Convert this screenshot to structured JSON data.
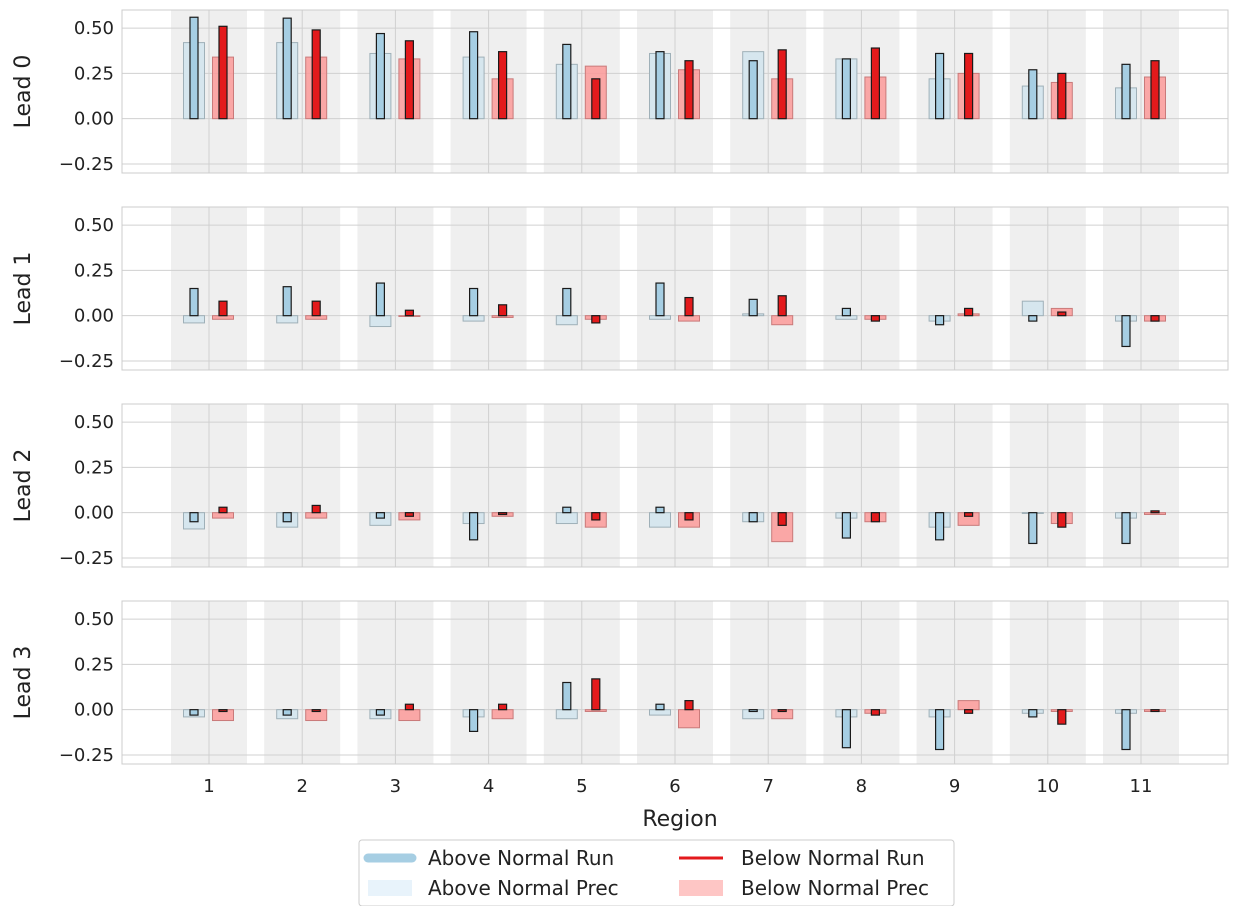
{
  "chart_data": {
    "type": "bar",
    "xlabel": "Region",
    "categories": [
      "1",
      "2",
      "3",
      "4",
      "5",
      "6",
      "7",
      "8",
      "9",
      "10",
      "11"
    ],
    "ylim": [
      -0.3,
      0.6
    ],
    "yticks": [
      "0.50",
      "0.25",
      "0.00",
      "−0.25"
    ],
    "ytick_values": [
      0.5,
      0.25,
      0,
      -0.25
    ],
    "grid": true,
    "legend": {
      "placement": "bottom-center",
      "entries": [
        "Above Normal Run",
        "Below Normal Run",
        "Above Normal Prec",
        "Below Normal Prec"
      ]
    },
    "colors": {
      "above_run": "#a6cee3",
      "above_prec": "#d6e6ee",
      "below_run": "#e31a1c",
      "below_prec": "#fb9a99",
      "region_band": "#efefef"
    },
    "panels": [
      {
        "label": "Lead 0",
        "series": [
          {
            "name": "Above Normal Prec",
            "values": [
              0.42,
              0.42,
              0.36,
              0.34,
              0.3,
              0.36,
              0.37,
              0.33,
              0.22,
              0.18,
              0.17
            ]
          },
          {
            "name": "Above Normal Run",
            "values": [
              0.56,
              0.555,
              0.47,
              0.48,
              0.41,
              0.37,
              0.32,
              0.33,
              0.36,
              0.27,
              0.3
            ]
          },
          {
            "name": "Below Normal Prec",
            "values": [
              0.34,
              0.34,
              0.33,
              0.22,
              0.29,
              0.27,
              0.22,
              0.23,
              0.25,
              0.2,
              0.23
            ]
          },
          {
            "name": "Below Normal Run",
            "values": [
              0.51,
              0.49,
              0.43,
              0.37,
              0.22,
              0.32,
              0.38,
              0.39,
              0.36,
              0.25,
              0.32
            ]
          }
        ]
      },
      {
        "label": "Lead 1",
        "series": [
          {
            "name": "Above Normal Prec",
            "values": [
              -0.04,
              -0.04,
              -0.06,
              -0.03,
              -0.05,
              -0.02,
              0.01,
              -0.02,
              -0.03,
              0.08,
              -0.03
            ]
          },
          {
            "name": "Above Normal Run",
            "values": [
              0.15,
              0.16,
              0.18,
              0.15,
              0.15,
              0.18,
              0.09,
              0.04,
              -0.05,
              -0.03,
              -0.17
            ]
          },
          {
            "name": "Below Normal Prec",
            "values": [
              -0.02,
              -0.02,
              0.0,
              -0.01,
              -0.02,
              -0.03,
              -0.05,
              -0.02,
              0.01,
              0.04,
              -0.03
            ]
          },
          {
            "name": "Below Normal Run",
            "values": [
              0.08,
              0.08,
              0.03,
              0.06,
              -0.04,
              0.1,
              0.11,
              -0.03,
              0.04,
              0.02,
              -0.03
            ]
          }
        ]
      },
      {
        "label": "Lead 2",
        "series": [
          {
            "name": "Above Normal Prec",
            "values": [
              -0.09,
              -0.08,
              -0.07,
              -0.06,
              -0.06,
              -0.08,
              -0.05,
              -0.03,
              -0.08,
              0.0,
              -0.03
            ]
          },
          {
            "name": "Above Normal Run",
            "values": [
              -0.05,
              -0.05,
              -0.03,
              -0.15,
              0.03,
              0.03,
              -0.05,
              -0.14,
              -0.15,
              -0.17,
              -0.17
            ]
          },
          {
            "name": "Below Normal Prec",
            "values": [
              -0.03,
              -0.03,
              -0.04,
              -0.02,
              -0.08,
              -0.08,
              -0.16,
              -0.05,
              -0.07,
              -0.06,
              -0.01
            ]
          },
          {
            "name": "Below Normal Run",
            "values": [
              0.03,
              0.04,
              -0.02,
              -0.01,
              -0.04,
              -0.04,
              -0.07,
              -0.05,
              -0.02,
              -0.08,
              0.01
            ]
          }
        ]
      },
      {
        "label": "Lead 3",
        "series": [
          {
            "name": "Above Normal Prec",
            "values": [
              -0.04,
              -0.05,
              -0.05,
              -0.04,
              -0.05,
              -0.03,
              -0.05,
              -0.04,
              -0.04,
              -0.02,
              -0.02
            ]
          },
          {
            "name": "Above Normal Run",
            "values": [
              -0.03,
              -0.03,
              -0.03,
              -0.12,
              0.15,
              0.03,
              -0.01,
              -0.21,
              -0.22,
              -0.04,
              -0.22
            ]
          },
          {
            "name": "Below Normal Prec",
            "values": [
              -0.06,
              -0.06,
              -0.06,
              -0.05,
              -0.01,
              -0.1,
              -0.05,
              -0.02,
              0.05,
              -0.01,
              -0.01
            ]
          },
          {
            "name": "Below Normal Run",
            "values": [
              -0.01,
              -0.01,
              0.03,
              0.03,
              0.17,
              0.05,
              -0.01,
              -0.03,
              -0.02,
              -0.08,
              -0.01
            ]
          }
        ]
      }
    ]
  }
}
